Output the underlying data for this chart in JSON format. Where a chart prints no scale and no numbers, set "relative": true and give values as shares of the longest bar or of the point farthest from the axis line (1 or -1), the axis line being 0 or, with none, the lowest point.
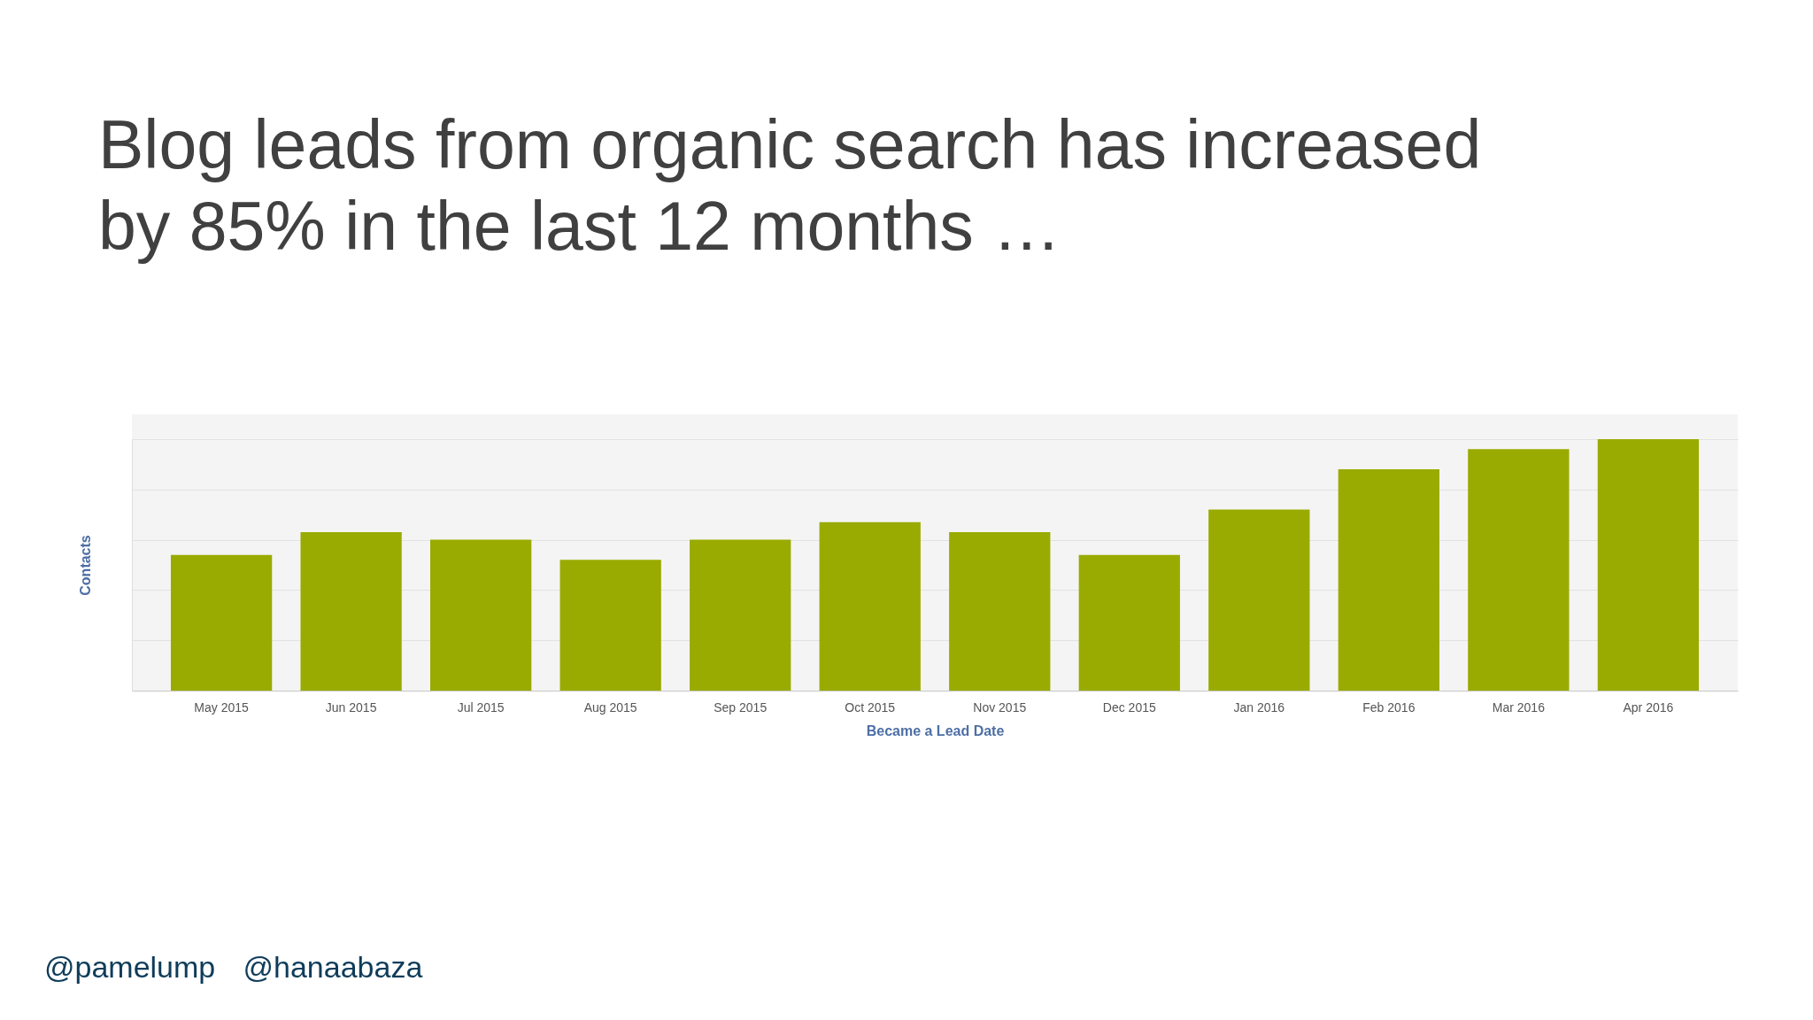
{
  "chart_data": {
    "type": "bar",
    "title": "Blog leads from organic search has increased by 85% in the last 12 months …",
    "categories": [
      "May 2015",
      "Jun 2015",
      "Jul 2015",
      "Aug 2015",
      "Sep 2015",
      "Oct 2015",
      "Nov 2015",
      "Dec 2015",
      "Jan 2016",
      "Feb 2016",
      "Mar 2016",
      "Apr 2016"
    ],
    "values": [
      0.54,
      0.63,
      0.6,
      0.52,
      0.6,
      0.67,
      0.63,
      0.54,
      0.72,
      0.88,
      0.96,
      1
    ],
    "relative": true,
    "color": "#99ab00",
    "xlabel": "Became a Lead Date",
    "ylabel": "Contacts",
    "grid": "y",
    "tick_labels": "x",
    "annotations": [
      "@pamelump",
      "@hanaabaza"
    ]
  }
}
